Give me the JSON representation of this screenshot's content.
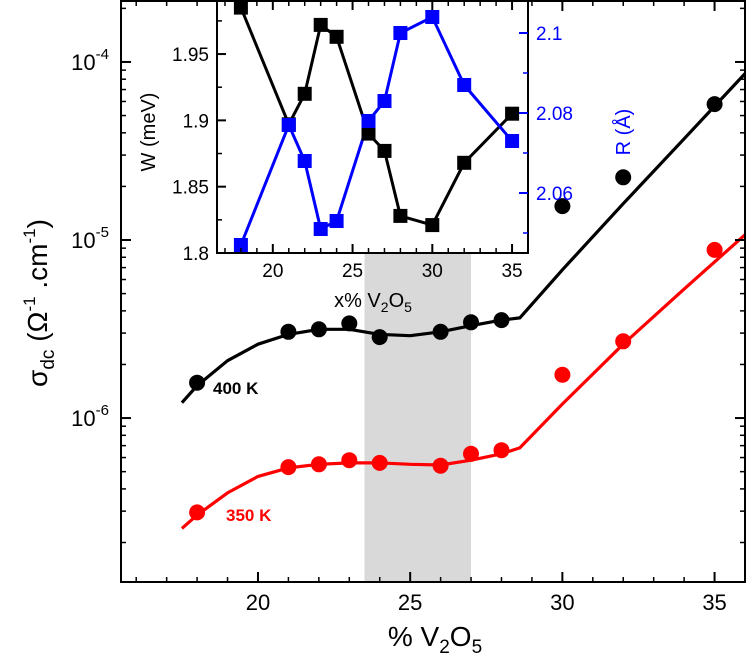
{
  "chart_data": [
    {
      "type": "scatter",
      "yscale": "log",
      "xlim": [
        15.5,
        36
      ],
      "ylim": [
        1.2e-07,
        0.00022
      ],
      "xticks": [
        20,
        25,
        30,
        35
      ],
      "xtick_labels": [
        "20",
        "25",
        "30",
        "35"
      ],
      "yticks": [
        1e-06,
        1e-05,
        0.0001
      ],
      "ytick_labels": [
        {
          "base": "10",
          "exp": "-6"
        },
        {
          "base": "10",
          "exp": "-5"
        },
        {
          "base": "10",
          "exp": "-4"
        }
      ],
      "xlabel": {
        "pre": "% V",
        "sub1": "2",
        "mid": "O",
        "sub2": "5"
      },
      "ylabel": {
        "sigma": "σ",
        "sub": "dc",
        "open": " (",
        "omega": "Ω",
        "sup1": "-1",
        "dot": " .cm",
        "sup2": "-1",
        "close": ")"
      },
      "shaded_region": {
        "x": [
          23.5,
          27
        ],
        "color": "#d9d9d9"
      },
      "series": [
        {
          "name": "400 K",
          "color": "#000000",
          "x": [
            18,
            21,
            22,
            23,
            24,
            26,
            27,
            28,
            30,
            32,
            35
          ],
          "y": [
            1.58e-06,
            3.05e-06,
            3.15e-06,
            3.4e-06,
            2.85e-06,
            3.05e-06,
            3.45e-06,
            3.55e-06,
            1.55e-05,
            2.25e-05,
            5.8e-05
          ],
          "fit_x": [
            17.5,
            18,
            19,
            20,
            21,
            22,
            23,
            24,
            25,
            26,
            27,
            28,
            28.6,
            30,
            32,
            34,
            36
          ],
          "fit_y": [
            1.22e-06,
            1.52e-06,
            2.1e-06,
            2.6e-06,
            2.95e-06,
            3.15e-06,
            3.15e-06,
            2.95e-06,
            2.9e-06,
            3.05e-06,
            3.3e-06,
            3.55e-06,
            3.65e-06,
            6.8e-06,
            1.6e-05,
            3.7e-05,
            8.6e-05
          ]
        },
        {
          "name": "350 K",
          "color": "#ff0000",
          "x": [
            18,
            21,
            22,
            23,
            24,
            26,
            27,
            28,
            30,
            32,
            35
          ],
          "y": [
            2.95e-07,
            5.3e-07,
            5.5e-07,
            5.8e-07,
            5.6e-07,
            5.4e-07,
            6.3e-07,
            6.6e-07,
            1.75e-06,
            2.7e-06,
            8.8e-06
          ],
          "fit_x": [
            17.5,
            18,
            19,
            20,
            21,
            22,
            23,
            24,
            25,
            26,
            27,
            28,
            28.6,
            30,
            32,
            34,
            36
          ],
          "fit_y": [
            2.4e-07,
            2.85e-07,
            3.8e-07,
            4.7e-07,
            5.25e-07,
            5.5e-07,
            5.6e-07,
            5.6e-07,
            5.5e-07,
            5.45e-07,
            5.8e-07,
            6.3e-07,
            6.8e-07,
            1.2e-06,
            2.6e-06,
            5.3e-06,
            1.07e-05
          ]
        }
      ],
      "labels": [
        {
          "text": "400 K",
          "color": "#000000"
        },
        {
          "text": "350 K",
          "color": "#ff0000"
        }
      ]
    },
    {
      "type": "line",
      "inset": true,
      "xlim": [
        16.5,
        36
      ],
      "xticks": [
        20,
        25,
        30,
        35
      ],
      "xtick_labels": [
        "20",
        "25",
        "30",
        "35"
      ],
      "xlabel": {
        "pre": "x% V",
        "sub1": "2",
        "mid": "O",
        "sub2": "5"
      },
      "ylim_left": [
        1.8,
        1.99
      ],
      "yticks_left": [
        1.8,
        1.85,
        1.9,
        1.95
      ],
      "ytick_labels_left": [
        "1.8",
        "1.85",
        "1.9",
        "1.95"
      ],
      "ylabel_left": "W (meV)",
      "ylim_right": [
        2.045,
        2.108
      ],
      "yticks_right": [
        2.06,
        2.08,
        2.1
      ],
      "ytick_labels_right": [
        "2.06",
        "2.08",
        "2.1"
      ],
      "ylabel_right": "R (Å)",
      "right_color": "#0000ff",
      "series": [
        {
          "name": "W",
          "axis": "left",
          "color": "#000000",
          "x": [
            18,
            21,
            22,
            23,
            24,
            26,
            27,
            28,
            30,
            32,
            35
          ],
          "y": [
            1.985,
            1.897,
            1.92,
            1.972,
            1.963,
            1.89,
            1.877,
            1.828,
            1.821,
            1.868,
            1.905
          ]
        },
        {
          "name": "R",
          "axis": "right",
          "color": "#0000ff",
          "x": [
            18,
            21,
            22,
            23,
            24,
            26,
            27,
            28,
            30,
            32,
            35
          ],
          "y": [
            2.047,
            2.077,
            2.068,
            2.051,
            2.053,
            2.078,
            2.083,
            2.1,
            2.104,
            2.087,
            2.073
          ]
        }
      ]
    }
  ]
}
